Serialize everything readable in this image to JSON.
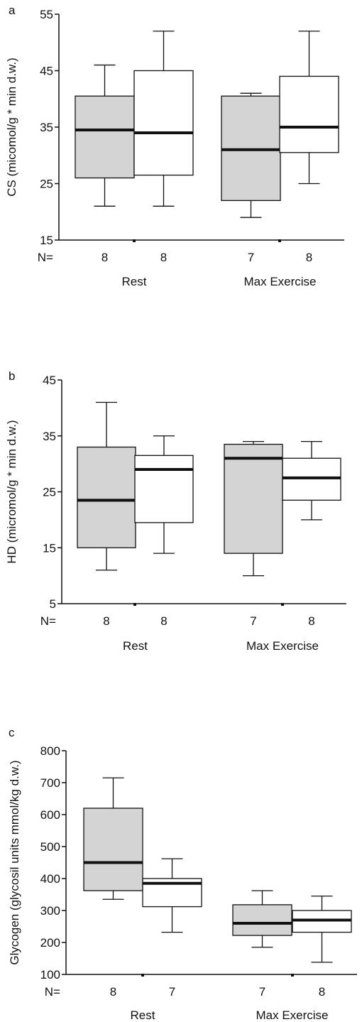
{
  "chart_data": [
    {
      "type": "box",
      "panel_label": "a",
      "ylabel": "CS (micomol/g * min d.w.)",
      "ylim": [
        15,
        55
      ],
      "yticks": [
        15,
        25,
        35,
        45,
        55
      ],
      "n_label": "N=",
      "groups": [
        "Rest",
        "Max Exercise"
      ],
      "colors": {
        "grey": "#d4d4d4",
        "white": "#ffffff"
      },
      "boxes": [
        {
          "group": "Rest",
          "fill": "grey",
          "n": "8",
          "min": 21,
          "q1": 26,
          "median": 34.5,
          "q3": 40.5,
          "max": 46
        },
        {
          "group": "Rest",
          "fill": "white",
          "n": "8",
          "min": 21,
          "q1": 26.5,
          "median": 34,
          "q3": 45,
          "max": 52
        },
        {
          "group": "Max Exercise",
          "fill": "grey",
          "n": "7",
          "min": 19,
          "q1": 22,
          "median": 31,
          "q3": 40.5,
          "max": 41
        },
        {
          "group": "Max Exercise",
          "fill": "white",
          "n": "8",
          "min": 25,
          "q1": 30.5,
          "median": 35,
          "q3": 44,
          "max": 52
        }
      ]
    },
    {
      "type": "box",
      "panel_label": "b",
      "ylabel": "HD (micromol/g * min d.w.)",
      "ylim": [
        5,
        45
      ],
      "yticks": [
        5,
        15,
        25,
        35,
        45
      ],
      "n_label": "N=",
      "groups": [
        "Rest",
        "Max Exercise"
      ],
      "colors": {
        "grey": "#d4d4d4",
        "white": "#ffffff"
      },
      "boxes": [
        {
          "group": "Rest",
          "fill": "grey",
          "n": "8",
          "min": 11,
          "q1": 15,
          "median": 23.5,
          "q3": 33,
          "max": 41
        },
        {
          "group": "Rest",
          "fill": "white",
          "n": "8",
          "min": 14,
          "q1": 19.5,
          "median": 29,
          "q3": 31.5,
          "max": 35
        },
        {
          "group": "Max Exercise",
          "fill": "grey",
          "n": "7",
          "min": 10,
          "q1": 14,
          "median": 31,
          "q3": 33.5,
          "max": 34
        },
        {
          "group": "Max Exercise",
          "fill": "white",
          "n": "8",
          "min": 20,
          "q1": 23.5,
          "median": 27.5,
          "q3": 31,
          "max": 34
        }
      ]
    },
    {
      "type": "box",
      "panel_label": "c",
      "ylabel": "Glycogen (glycosil units mmol/kg d.w.)",
      "ylim": [
        100,
        800
      ],
      "yticks": [
        100,
        200,
        300,
        400,
        500,
        600,
        700,
        800
      ],
      "n_label": "N=",
      "groups": [
        "Rest",
        "Max Exercise"
      ],
      "colors": {
        "grey": "#d4d4d4",
        "white": "#ffffff"
      },
      "boxes": [
        {
          "group": "Rest",
          "fill": "grey",
          "n": "8",
          "min": 335,
          "q1": 362,
          "median": 450,
          "q3": 620,
          "max": 715
        },
        {
          "group": "Rest",
          "fill": "white",
          "n": "7",
          "min": 232,
          "q1": 312,
          "median": 385,
          "q3": 400,
          "max": 462
        },
        {
          "group": "Max Exercise",
          "fill": "grey",
          "n": "7",
          "min": 185,
          "q1": 222,
          "median": 260,
          "q3": 318,
          "max": 362
        },
        {
          "group": "Max Exercise",
          "fill": "white",
          "n": "8",
          "min": 138,
          "q1": 232,
          "median": 270,
          "q3": 300,
          "max": 345
        }
      ]
    }
  ]
}
